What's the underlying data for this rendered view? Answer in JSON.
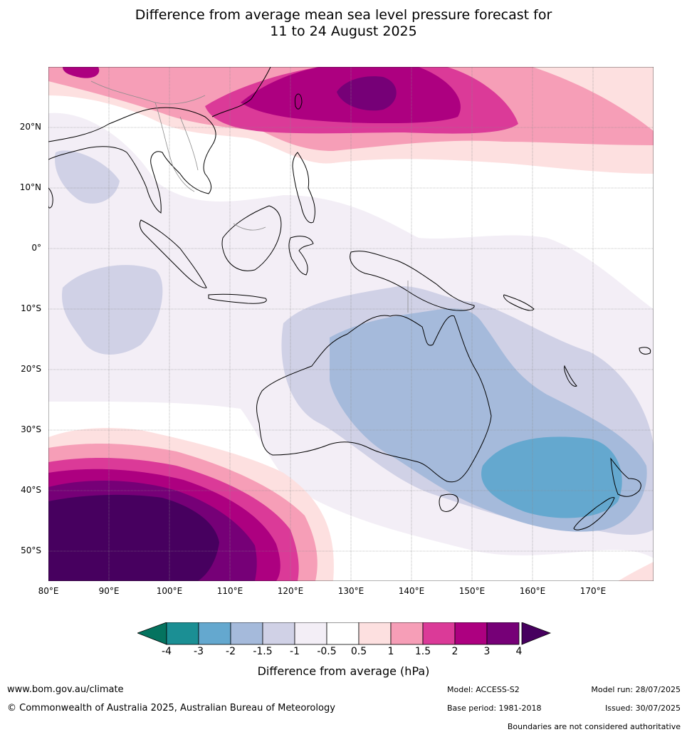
{
  "title": {
    "line1": "Difference from average mean sea level pressure forecast for",
    "line2": "11 to 24 August 2025"
  },
  "map": {
    "lat_labels": [
      "20°N",
      "10°N",
      "0°",
      "10°S",
      "20°S",
      "30°S",
      "40°S",
      "50°S"
    ],
    "lon_labels": [
      "80°E",
      "90°E",
      "100°E",
      "110°E",
      "120°E",
      "130°E",
      "140°E",
      "150°E",
      "160°E",
      "170°E"
    ],
    "extent": {
      "lon": [
        80,
        180
      ],
      "lat": [
        -55,
        30
      ]
    }
  },
  "colorbar": {
    "title": "Difference from average (hPa)",
    "ticks": [
      "-4",
      "-3",
      "-2",
      "-1.5",
      "-1",
      "-0.5",
      "0.5",
      "1",
      "1.5",
      "2",
      "3",
      "4"
    ],
    "colors": [
      "#1b8f94",
      "#64a8cf",
      "#a5badb",
      "#d0d1e6",
      "#f3eef6",
      "#ffffff",
      "#fde0e0",
      "#f69eb7",
      "#db3a98",
      "#ad0080",
      "#760077"
    ],
    "under_color": "#04735f",
    "over_color": "#47005f"
  },
  "footer": {
    "website": "www.bom.gov.au/climate",
    "copyright": "© Commonwealth of Australia 2025, Australian Bureau of Meteorology",
    "model": "Model: ACCESS-S2",
    "base_period": "Base period: 1981-2018",
    "model_run": "Model run: 28/07/2025",
    "issued": "Issued: 30/07/2025",
    "disclaimer": "Boundaries are not considered authoritative"
  }
}
